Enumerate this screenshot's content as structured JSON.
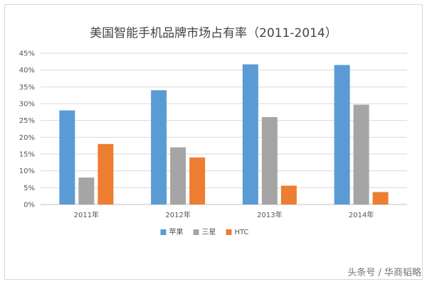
{
  "chart_data": {
    "type": "bar",
    "title": "美国智能手机品牌市场占有率（2011-2014）",
    "categories": [
      "2011年",
      "2012年",
      "2013年",
      "2014年"
    ],
    "series": [
      {
        "name": "苹果",
        "color": "#5b9bd5",
        "values": [
          28,
          34,
          41.7,
          41.5
        ]
      },
      {
        "name": "三星",
        "color": "#a5a5a5",
        "values": [
          8,
          17,
          26,
          29.7
        ]
      },
      {
        "name": "HTC",
        "color": "#ed7d31",
        "values": [
          18,
          14,
          5.6,
          3.7
        ]
      }
    ],
    "y_ticks": [
      "0%",
      "5%",
      "10%",
      "15%",
      "20%",
      "25%",
      "30%",
      "35%",
      "40%",
      "45%"
    ],
    "ylim": [
      0,
      45
    ],
    "grid": true,
    "legend_position": "bottom"
  },
  "watermark": "头条号 / 华商韬略"
}
